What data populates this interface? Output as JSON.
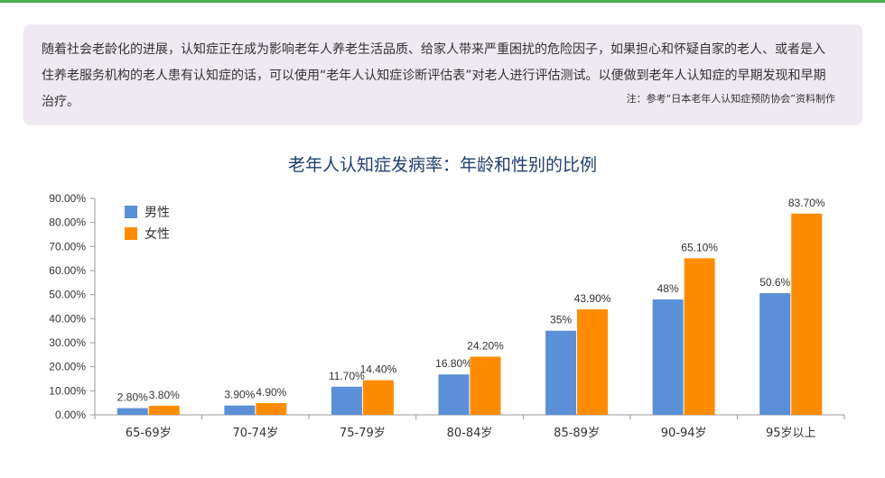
{
  "intro": {
    "text": "随着社会老龄化的进展，认知症正在成为影响老年人养老生活品质、给家人带来严重困扰的危险因子，如果担心和怀疑自家的老人、或者是入住养老服务机构的老人患有认知症的话，可以使用“老年人认知症诊断评估表”对老人进行评估测试。以便做到老年人认知症的早期发现和早期治疗。",
    "note": "注：参考“日本老年人认知症预防协会”资料制作"
  },
  "colors": {
    "male": "#5b8fd8",
    "female": "#ff8c00",
    "accent": "#4caf50",
    "box": "#efe9f2"
  },
  "chart_data": {
    "type": "bar",
    "title": "老年人认知症发病率：年龄和性别的比例",
    "categories": [
      "65-69岁",
      "70-74岁",
      "75-79岁",
      "80-84岁",
      "85-89岁",
      "90-94岁",
      "95岁以上"
    ],
    "series": [
      {
        "name": "男性",
        "color": "#5b8fd8",
        "values": [
          2.8,
          3.9,
          11.7,
          16.8,
          35,
          48,
          50.6
        ],
        "labels": [
          "2.80%",
          "3.90%",
          "11.70%",
          "16.80%",
          "35%",
          "48%",
          "50.6%"
        ]
      },
      {
        "name": "女性",
        "color": "#ff8c00",
        "values": [
          3.8,
          4.9,
          14.4,
          24.2,
          43.9,
          65.1,
          83.7
        ],
        "labels": [
          "3.80%",
          "4.90%",
          "14.40%",
          "24.20%",
          "43.90%",
          "65.10%",
          "83.70%"
        ]
      }
    ],
    "yticks": [
      "0.00%",
      "10.00%",
      "20.00%",
      "30.00%",
      "40.00%",
      "50.00%",
      "60.00%",
      "70.00%",
      "80.00%",
      "90.00%"
    ],
    "ylim": [
      0,
      90
    ],
    "legend": "top-left",
    "grid": false
  }
}
